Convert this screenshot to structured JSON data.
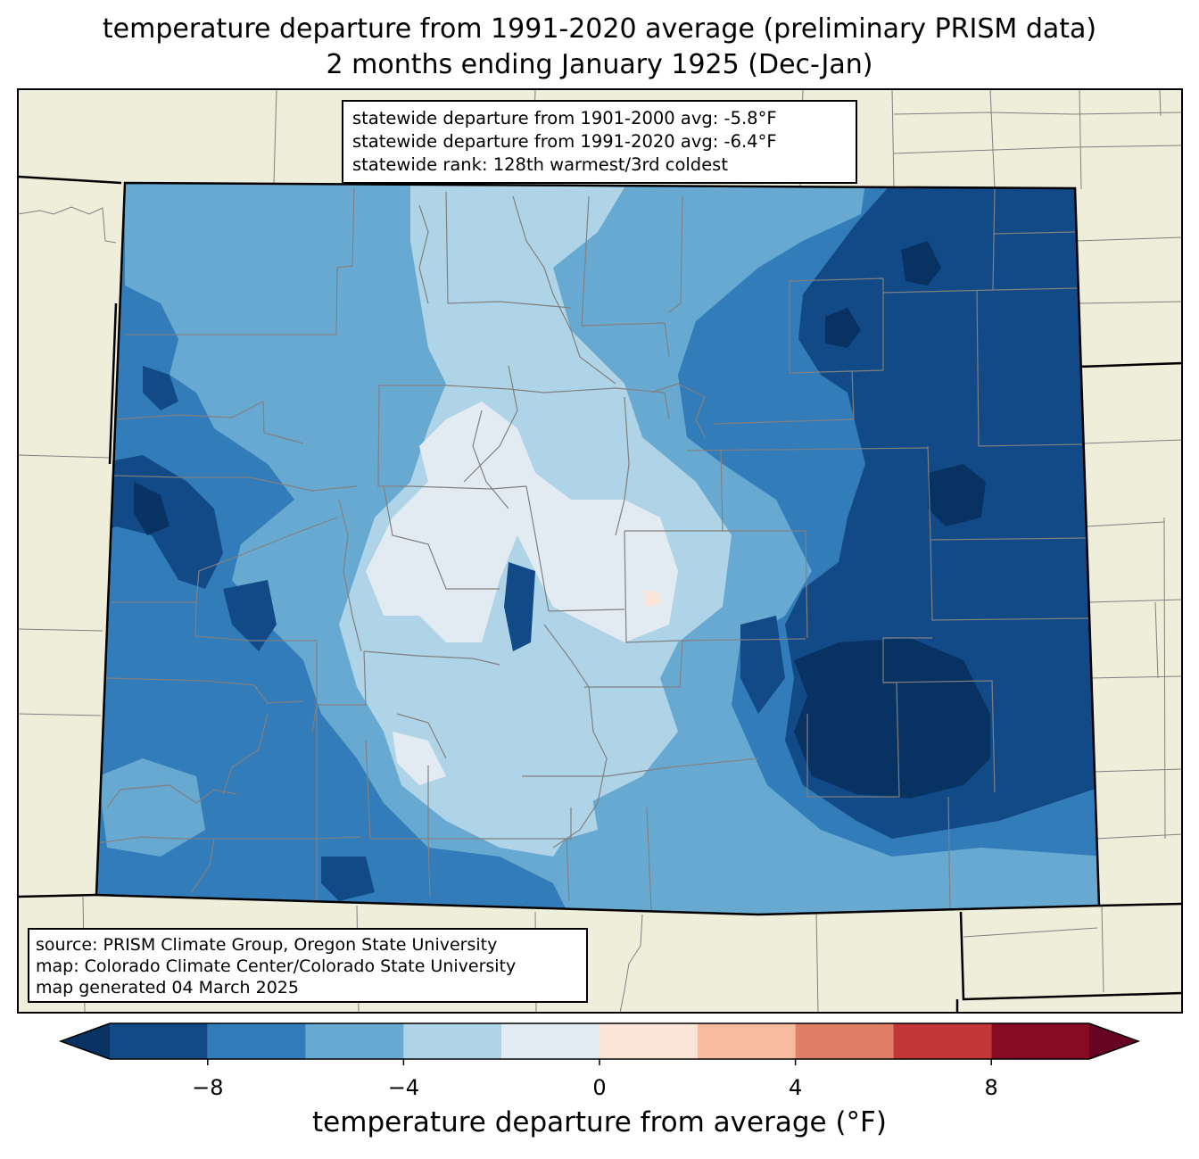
{
  "title": {
    "line1": "temperature departure from 1991-2020 average (preliminary PRISM data)",
    "line2": "2 months ending January 1925 (Dec-Jan)"
  },
  "stats_box": {
    "line1": "statewide departure from 1901-2000 avg: -5.8°F",
    "line2": "statewide departure from 1991-2020 avg: -6.4°F",
    "line3": "statewide rank: 128th warmest/3rd coldest"
  },
  "source_box": {
    "line1": "source: PRISM Climate Group, Oregon State University",
    "line2": "map: Colorado Climate Center/Colorado State University",
    "line3": "map generated 04 March 2025"
  },
  "colorbar": {
    "label": "temperature departure from average (°F)",
    "ticks": [
      "−8",
      "−4",
      "0",
      "4",
      "8"
    ],
    "tick_values": [
      -8,
      -4,
      0,
      4,
      8
    ],
    "range": [
      -10,
      10
    ],
    "bins": [
      {
        "from": -10,
        "to": -8,
        "color": "#124a87"
      },
      {
        "from": -8,
        "to": -6,
        "color": "#327cba"
      },
      {
        "from": -6,
        "to": -4,
        "color": "#68a9d1"
      },
      {
        "from": -4,
        "to": -2,
        "color": "#b0d4e7"
      },
      {
        "from": -2,
        "to": 0,
        "color": "#e2ebf2"
      },
      {
        "from": 0,
        "to": 2,
        "color": "#fbe5d9"
      },
      {
        "from": 2,
        "to": 4,
        "color": "#f8bba0"
      },
      {
        "from": 4,
        "to": 6,
        "color": "#e07e67"
      },
      {
        "from": 6,
        "to": 8,
        "color": "#c23638"
      },
      {
        "from": 8,
        "to": 10,
        "color": "#870b24"
      }
    ],
    "under_color": "#073262",
    "over_color": "#670424"
  },
  "colors": {
    "land": "#efeedb",
    "county_lines": "#808080",
    "state_lines": "#000000"
  }
}
